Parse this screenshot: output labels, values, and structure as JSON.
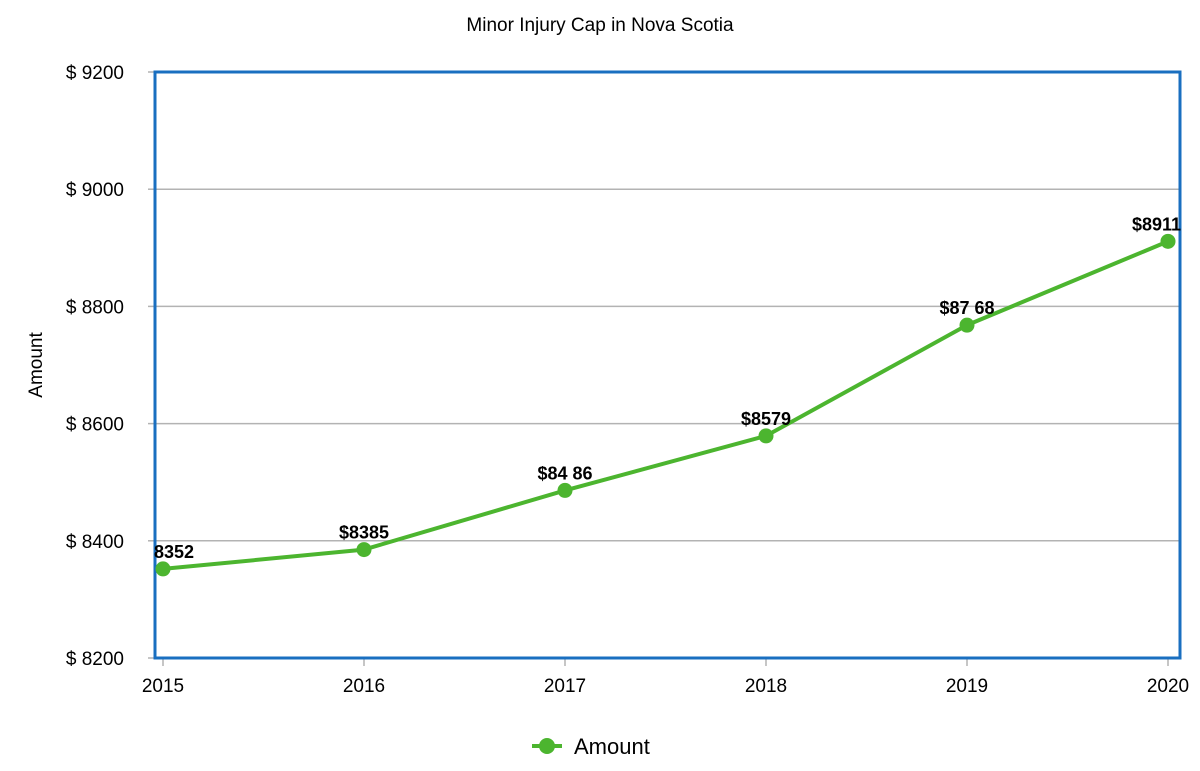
{
  "chart_data": {
    "type": "line",
    "title": "Minor Injury Cap in Nova Scotia",
    "xlabel": "",
    "ylabel": "Amount",
    "categories": [
      "2015",
      "2016",
      "2017",
      "2018",
      "2019",
      "2020"
    ],
    "series": [
      {
        "name": "Amount",
        "values": [
          8352,
          8385,
          8486,
          8579,
          8768,
          8911
        ],
        "data_labels": [
          "8352",
          "$8385",
          "$84 86",
          "$8579",
          "$87 68",
          "$8911"
        ],
        "color": "#4cb52f"
      }
    ],
    "ylim": [
      8200,
      9200
    ],
    "yticks": [
      8200,
      8400,
      8600,
      8800,
      9000,
      9200
    ],
    "ytick_labels": [
      "$ 8200",
      "$ 8400",
      "$ 8600",
      "$ 8800",
      "$ 9000",
      "$ 9200"
    ],
    "grid": true,
    "legend_position": "bottom-center",
    "frame_color": "#1a6fc0",
    "grid_color": "#b3b3b3"
  }
}
